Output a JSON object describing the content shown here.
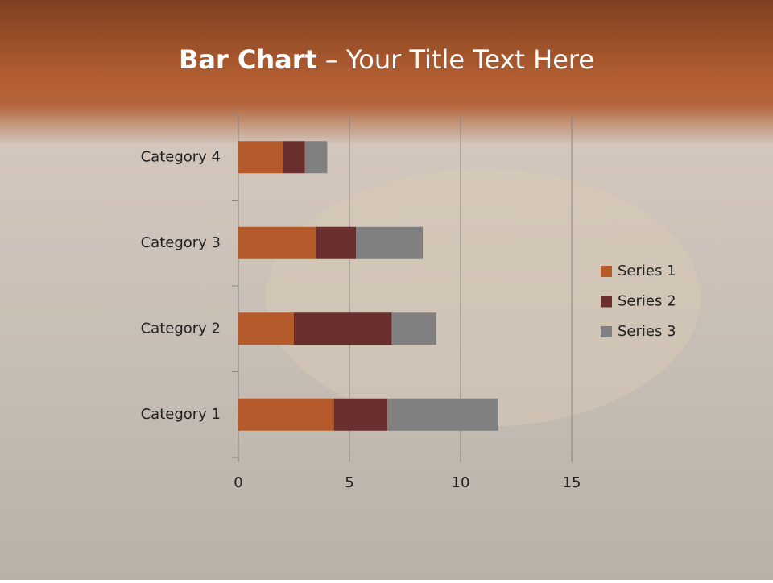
{
  "slide_title": {
    "bold": "Bar Chart",
    "rest": "– Your Title Text Here"
  },
  "chart_data": {
    "type": "bar",
    "orientation": "horizontal",
    "stacked": true,
    "categories": [
      "Category 1",
      "Category 2",
      "Category 3",
      "Category 4"
    ],
    "series": [
      {
        "name": "Series 1",
        "color": "#b45a2b",
        "values": [
          4.3,
          2.5,
          3.5,
          2
        ]
      },
      {
        "name": "Series 2",
        "color": "#6a2e2f",
        "values": [
          2.4,
          4.4,
          1.8,
          1
        ]
      },
      {
        "name": "Series 3",
        "color": "#808080",
        "values": [
          5,
          2,
          3,
          1
        ]
      }
    ],
    "xlim": [
      0,
      15
    ],
    "xticks": [
      0,
      5,
      10,
      15
    ],
    "grid": true,
    "legend": "right"
  }
}
